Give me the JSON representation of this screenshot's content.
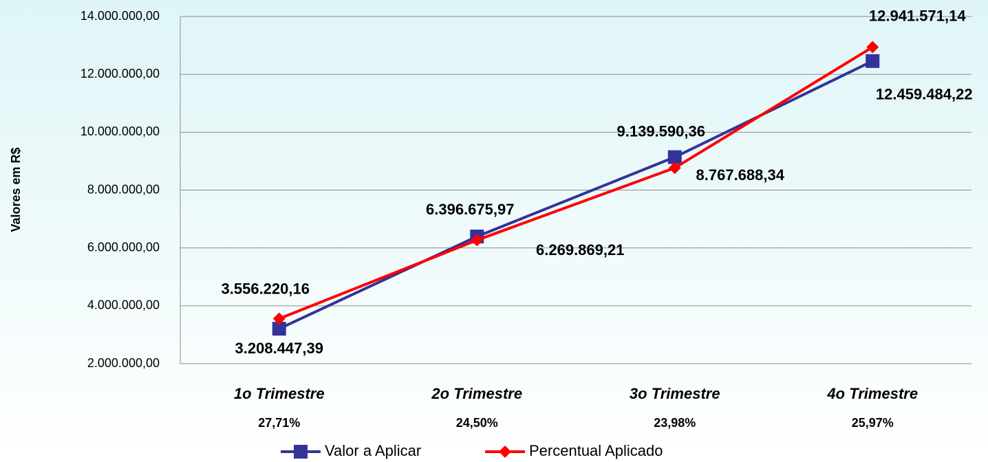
{
  "chart_data": {
    "type": "line",
    "y_axis_label": "Valores em R$",
    "categories": [
      "1o Trimestre",
      "2o Trimestre",
      "3o Trimestre",
      "4o Trimestre"
    ],
    "category_notes": [
      "27,71%",
      "24,50%",
      "23,98%",
      "25,97%"
    ],
    "series": [
      {
        "name": "Valor a Aplicar",
        "color": "#333399",
        "marker": "square",
        "values": [
          3208447.39,
          6396675.97,
          9139590.36,
          12459484.22
        ],
        "value_labels": [
          "3.208.447,39",
          "6.396.675,97",
          "9.139.590,36",
          "12.459.484,22"
        ]
      },
      {
        "name": "Percentual Aplicado",
        "color": "#ff0000",
        "marker": "diamond",
        "values": [
          3556220.16,
          6269869.21,
          8767688.34,
          12941571.14
        ],
        "value_labels": [
          "3.556.220,16",
          "6.269.869,21",
          "8.767.688,34",
          "12.941.571,14"
        ]
      }
    ],
    "ylim": [
      2000000,
      14000000
    ],
    "yticks": [
      {
        "value": 2000000,
        "label": "2.000.000,00"
      },
      {
        "value": 4000000,
        "label": "4.000.000,00"
      },
      {
        "value": 6000000,
        "label": "6.000.000,00"
      },
      {
        "value": 8000000,
        "label": "8.000.000,00"
      },
      {
        "value": 10000000,
        "label": "10.000.000,00"
      },
      {
        "value": 12000000,
        "label": "12.000.000,00"
      },
      {
        "value": 14000000,
        "label": "14.000.000,00"
      }
    ],
    "grid": true,
    "legend": "bottom"
  }
}
